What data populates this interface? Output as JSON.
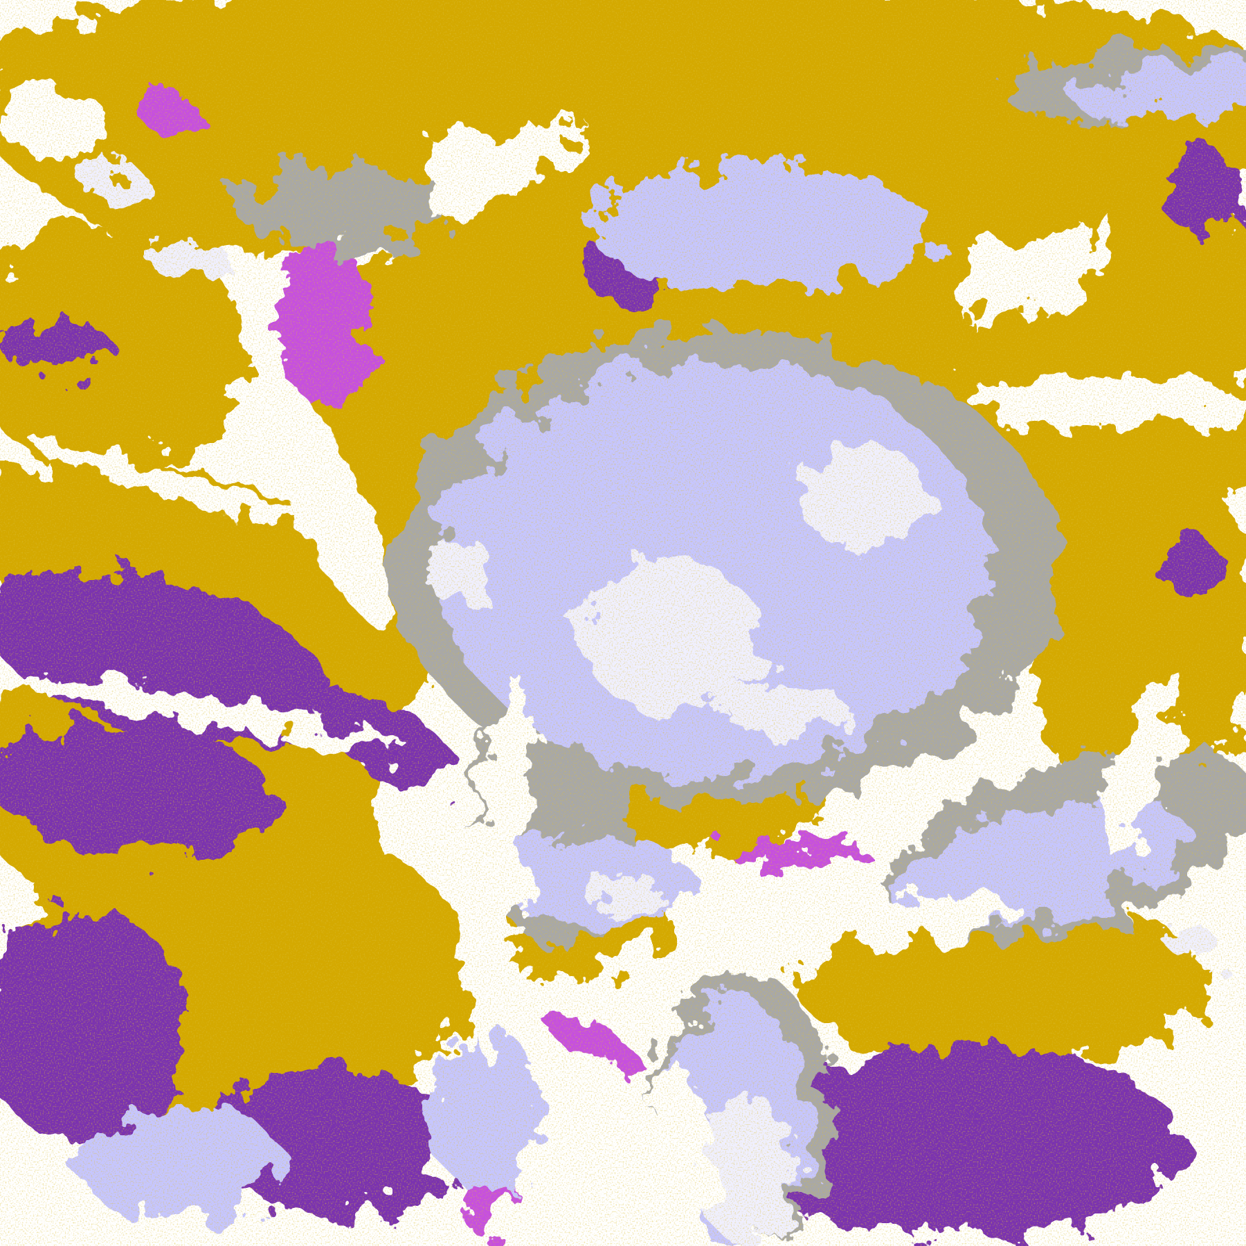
{
  "palette": {
    "background": "#ffffff",
    "gold": "#d4a900",
    "dark_gold": "#b8860b",
    "purple": "#7a32b0",
    "magenta": "#c64fe0",
    "lavender": "#c6c6ff",
    "pale_cloud": "#f0f0ff",
    "periwinkle": "#9a9aff",
    "gray": "#a8a8a8"
  }
}
